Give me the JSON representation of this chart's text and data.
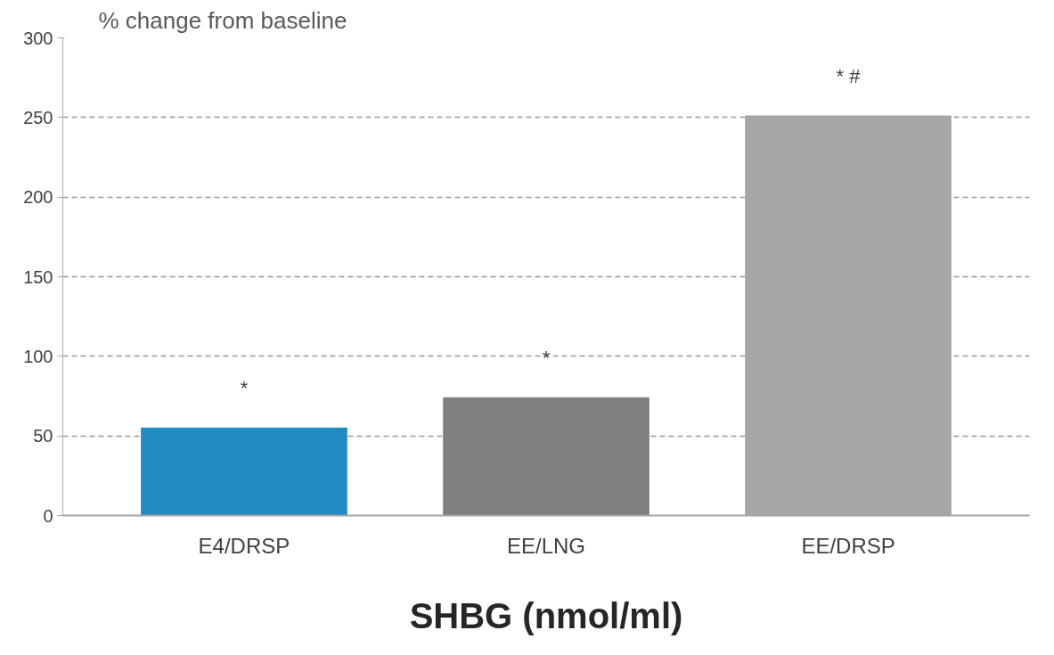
{
  "chart_data": {
    "type": "bar",
    "ylabel": "% change from baseline",
    "xlabel": "SHBG (nmol/ml)",
    "categories": [
      "E4/DRSP",
      "EE/LNG",
      "EE/DRSP"
    ],
    "values": [
      55,
      74,
      251
    ],
    "colors": [
      "#228bc1",
      "#7f7f7f",
      "#a6a6a6"
    ],
    "ylim": [
      0,
      300
    ],
    "yticks": [
      0,
      50,
      100,
      150,
      200,
      250,
      300
    ],
    "grid": "y",
    "annotations": [
      "*",
      "*",
      "* #"
    ]
  }
}
